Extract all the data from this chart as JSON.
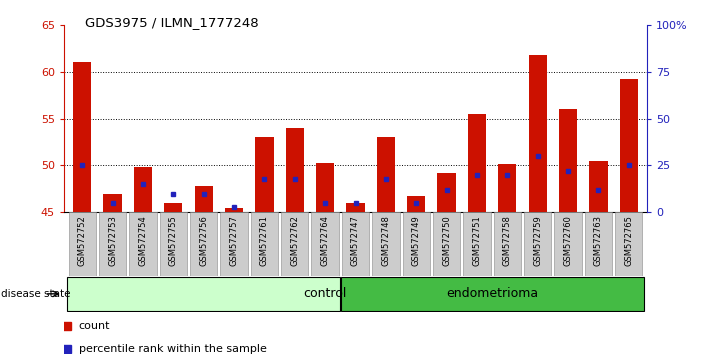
{
  "title": "GDS3975 / ILMN_1777248",
  "samples": [
    "GSM572752",
    "GSM572753",
    "GSM572754",
    "GSM572755",
    "GSM572756",
    "GSM572757",
    "GSM572761",
    "GSM572762",
    "GSM572764",
    "GSM572747",
    "GSM572748",
    "GSM572749",
    "GSM572750",
    "GSM572751",
    "GSM572758",
    "GSM572759",
    "GSM572760",
    "GSM572763",
    "GSM572765"
  ],
  "counts": [
    61.0,
    47.0,
    49.8,
    46.0,
    47.8,
    45.5,
    53.0,
    54.0,
    50.3,
    46.0,
    53.0,
    46.7,
    49.2,
    55.5,
    50.2,
    61.8,
    56.0,
    50.5,
    59.2
  ],
  "percentiles": [
    25,
    5,
    15,
    10,
    10,
    3,
    18,
    18,
    5,
    5,
    18,
    5,
    12,
    20,
    20,
    30,
    22,
    12,
    25
  ],
  "control_count": 9,
  "endometrioma_count": 10,
  "ymin": 45,
  "ymax": 65,
  "yticks_left": [
    45,
    50,
    55,
    60,
    65
  ],
  "right_ytick_vals": [
    0,
    25,
    50,
    75,
    100
  ],
  "right_yticklabels": [
    "0",
    "25",
    "50",
    "75",
    "100%"
  ],
  "bar_color": "#cc1100",
  "percentile_color": "#2222bb",
  "bg_color": "#ffffff",
  "control_bg": "#ccffcc",
  "endometrioma_bg": "#44bb44",
  "xticklabel_bg": "#cccccc",
  "left_tick_color": "#cc1100",
  "right_tick_color": "#2222bb",
  "bar_width": 0.6
}
